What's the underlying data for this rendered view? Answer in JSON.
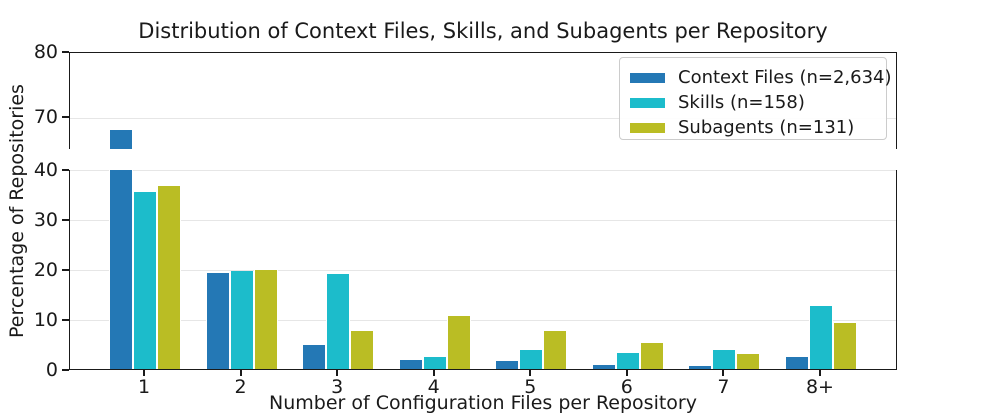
{
  "chart_data": {
    "type": "bar",
    "title": "Distribution of Context Files, Skills, and Subagents per Repository",
    "xlabel": "Number of Configuration Files per Repository",
    "ylabel": "Percentage of Repositories",
    "categories": [
      "1",
      "2",
      "3",
      "4",
      "5",
      "6",
      "7",
      "8+"
    ],
    "series": [
      {
        "name": "Context Files (n=2,634)",
        "color": "#2478B5",
        "values": [
          67.9,
          19.2,
          4.9,
          1.8,
          1.6,
          0.9,
          0.7,
          2.4
        ]
      },
      {
        "name": "Skills (n=158)",
        "color": "#1CBCCB",
        "values": [
          35.4,
          19.6,
          19.0,
          2.5,
          3.8,
          3.2,
          3.8,
          12.7
        ]
      },
      {
        "name": "Subagents (n=131)",
        "color": "#BABD24",
        "values": [
          36.6,
          19.8,
          7.6,
          10.7,
          7.6,
          5.3,
          3.1,
          9.2
        ]
      }
    ],
    "broken_axis": {
      "top_ylim": [
        65,
        80
      ],
      "bottom_ylim": [
        0,
        40
      ],
      "top_ticks": [
        80,
        70
      ],
      "bottom_ticks": [
        40,
        30,
        20,
        10,
        0
      ]
    },
    "grid": "horizontal",
    "legend_position": "upper right",
    "axis_color": "#1a1a1a",
    "gridline_color": "#e6e6e6"
  }
}
